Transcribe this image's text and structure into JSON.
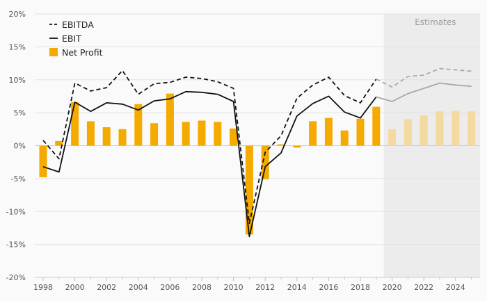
{
  "chart_data": {
    "type": "bar+line",
    "x": [
      1998,
      1999,
      2000,
      2001,
      2002,
      2003,
      2004,
      2005,
      2006,
      2007,
      2008,
      2009,
      2010,
      2011,
      2012,
      2013,
      2014,
      2015,
      2016,
      2017,
      2018,
      2019,
      2020,
      2021,
      2022,
      2023,
      2024,
      2025
    ],
    "x_ticks": [
      "1998",
      "2000",
      "2002",
      "2004",
      "2006",
      "2008",
      "2010",
      "2012",
      "2014",
      "2016",
      "2018",
      "2020",
      "2022",
      "2024"
    ],
    "ylim": [
      -20,
      20
    ],
    "y_ticks": [
      "20%",
      "15%",
      "10%",
      "5%",
      "0%",
      "-5%",
      "-10%",
      "-15%",
      "-20%"
    ],
    "grid": "horizontal",
    "legend_position": "top-left",
    "estimates_from": 2020,
    "estimates_label": "Estimates",
    "series": [
      {
        "name": "EBITDA",
        "kind": "line",
        "style": "dashed",
        "color": "#111111",
        "estimate_color": "#a8a8a8",
        "values": [
          0.8,
          -2.0,
          9.5,
          8.3,
          8.8,
          11.4,
          7.8,
          9.4,
          9.6,
          10.4,
          10.2,
          9.7,
          8.7,
          -11.8,
          -1.0,
          1.5,
          7.2,
          9.2,
          10.4,
          7.6,
          6.5,
          10.1,
          8.9,
          10.5,
          10.7,
          11.7,
          11.5,
          11.3
        ]
      },
      {
        "name": "EBIT",
        "kind": "line",
        "style": "solid",
        "color": "#111111",
        "estimate_color": "#a8a8a8",
        "values": [
          -3.2,
          -4.0,
          6.6,
          5.2,
          6.5,
          6.3,
          5.4,
          6.8,
          7.1,
          8.2,
          8.1,
          7.8,
          6.7,
          -13.8,
          -3.2,
          -1.1,
          4.5,
          6.4,
          7.5,
          5.1,
          4.2,
          7.4,
          6.7,
          7.9,
          8.7,
          9.5,
          9.2,
          9.0
        ]
      },
      {
        "name": "Net Profit",
        "kind": "bar",
        "color": "#f5aa00",
        "estimate_color": "#f4d9a0",
        "values": [
          -4.8,
          0.7,
          6.6,
          3.7,
          2.8,
          2.5,
          6.3,
          3.4,
          7.9,
          3.6,
          3.8,
          3.6,
          2.6,
          -13.5,
          -5.1,
          0.2,
          -0.3,
          3.7,
          4.2,
          2.3,
          4.1,
          5.9,
          2.5,
          4.0,
          4.6,
          5.2,
          5.3,
          5.2
        ]
      }
    ]
  }
}
